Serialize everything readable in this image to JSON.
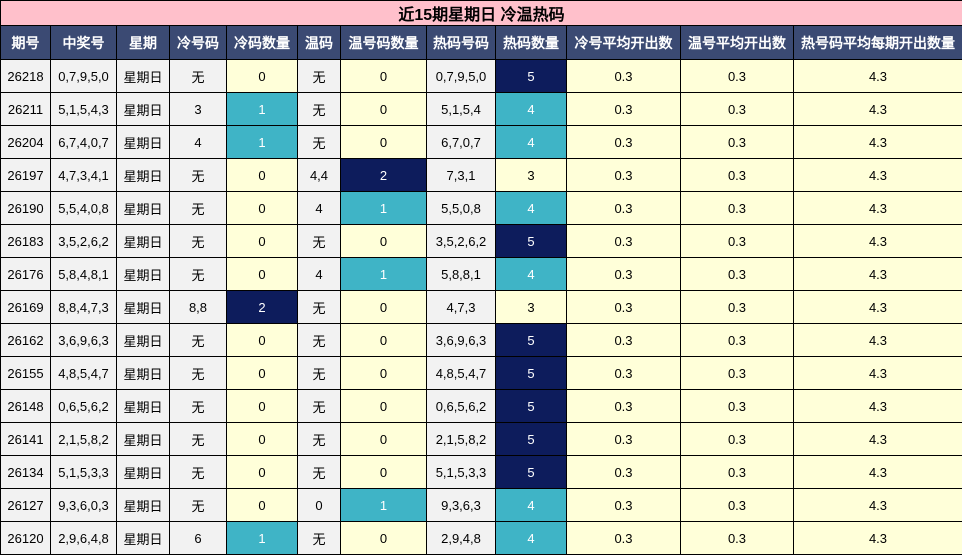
{
  "title": "近15期星期日 冷温热码",
  "headers": [
    "期号",
    "中奖号",
    "星期",
    "冷号码",
    "冷码数量",
    "温码",
    "温号码数量",
    "热码号码",
    "热码数量",
    "冷号平均开出数",
    "温号平均开出数",
    "热号码平均每期开出数量"
  ],
  "rows": [
    {
      "period": "26218",
      "numbers": "0,7,9,5,0",
      "weekday": "星期日",
      "cold": "无",
      "cold_count": "0",
      "warm": "无",
      "warm_count": "0",
      "hot": "0,7,9,5,0",
      "hot_count": "5",
      "cold_avg": "0.3",
      "warm_avg": "0.3",
      "hot_avg": "4.3"
    },
    {
      "period": "26211",
      "numbers": "5,1,5,4,3",
      "weekday": "星期日",
      "cold": "3",
      "cold_count": "1",
      "warm": "无",
      "warm_count": "0",
      "hot": "5,1,5,4",
      "hot_count": "4",
      "cold_avg": "0.3",
      "warm_avg": "0.3",
      "hot_avg": "4.3"
    },
    {
      "period": "26204",
      "numbers": "6,7,4,0,7",
      "weekday": "星期日",
      "cold": "4",
      "cold_count": "1",
      "warm": "无",
      "warm_count": "0",
      "hot": "6,7,0,7",
      "hot_count": "4",
      "cold_avg": "0.3",
      "warm_avg": "0.3",
      "hot_avg": "4.3"
    },
    {
      "period": "26197",
      "numbers": "4,7,3,4,1",
      "weekday": "星期日",
      "cold": "无",
      "cold_count": "0",
      "warm": "4,4",
      "warm_count": "2",
      "hot": "7,3,1",
      "hot_count": "3",
      "cold_avg": "0.3",
      "warm_avg": "0.3",
      "hot_avg": "4.3"
    },
    {
      "period": "26190",
      "numbers": "5,5,4,0,8",
      "weekday": "星期日",
      "cold": "无",
      "cold_count": "0",
      "warm": "4",
      "warm_count": "1",
      "hot": "5,5,0,8",
      "hot_count": "4",
      "cold_avg": "0.3",
      "warm_avg": "0.3",
      "hot_avg": "4.3"
    },
    {
      "period": "26183",
      "numbers": "3,5,2,6,2",
      "weekday": "星期日",
      "cold": "无",
      "cold_count": "0",
      "warm": "无",
      "warm_count": "0",
      "hot": "3,5,2,6,2",
      "hot_count": "5",
      "cold_avg": "0.3",
      "warm_avg": "0.3",
      "hot_avg": "4.3"
    },
    {
      "period": "26176",
      "numbers": "5,8,4,8,1",
      "weekday": "星期日",
      "cold": "无",
      "cold_count": "0",
      "warm": "4",
      "warm_count": "1",
      "hot": "5,8,8,1",
      "hot_count": "4",
      "cold_avg": "0.3",
      "warm_avg": "0.3",
      "hot_avg": "4.3"
    },
    {
      "period": "26169",
      "numbers": "8,8,4,7,3",
      "weekday": "星期日",
      "cold": "8,8",
      "cold_count": "2",
      "warm": "无",
      "warm_count": "0",
      "hot": "4,7,3",
      "hot_count": "3",
      "cold_avg": "0.3",
      "warm_avg": "0.3",
      "hot_avg": "4.3"
    },
    {
      "period": "26162",
      "numbers": "3,6,9,6,3",
      "weekday": "星期日",
      "cold": "无",
      "cold_count": "0",
      "warm": "无",
      "warm_count": "0",
      "hot": "3,6,9,6,3",
      "hot_count": "5",
      "cold_avg": "0.3",
      "warm_avg": "0.3",
      "hot_avg": "4.3"
    },
    {
      "period": "26155",
      "numbers": "4,8,5,4,7",
      "weekday": "星期日",
      "cold": "无",
      "cold_count": "0",
      "warm": "无",
      "warm_count": "0",
      "hot": "4,8,5,4,7",
      "hot_count": "5",
      "cold_avg": "0.3",
      "warm_avg": "0.3",
      "hot_avg": "4.3"
    },
    {
      "period": "26148",
      "numbers": "0,6,5,6,2",
      "weekday": "星期日",
      "cold": "无",
      "cold_count": "0",
      "warm": "无",
      "warm_count": "0",
      "hot": "0,6,5,6,2",
      "hot_count": "5",
      "cold_avg": "0.3",
      "warm_avg": "0.3",
      "hot_avg": "4.3"
    },
    {
      "period": "26141",
      "numbers": "2,1,5,8,2",
      "weekday": "星期日",
      "cold": "无",
      "cold_count": "0",
      "warm": "无",
      "warm_count": "0",
      "hot": "2,1,5,8,2",
      "hot_count": "5",
      "cold_avg": "0.3",
      "warm_avg": "0.3",
      "hot_avg": "4.3"
    },
    {
      "period": "26134",
      "numbers": "5,1,5,3,3",
      "weekday": "星期日",
      "cold": "无",
      "cold_count": "0",
      "warm": "无",
      "warm_count": "0",
      "hot": "5,1,5,3,3",
      "hot_count": "5",
      "cold_avg": "0.3",
      "warm_avg": "0.3",
      "hot_avg": "4.3"
    },
    {
      "period": "26127",
      "numbers": "9,3,6,0,3",
      "weekday": "星期日",
      "cold": "无",
      "cold_count": "0",
      "warm": "0",
      "warm_count": "1",
      "hot": "9,3,6,3",
      "hot_count": "4",
      "cold_avg": "0.3",
      "warm_avg": "0.3",
      "hot_avg": "4.3"
    },
    {
      "period": "26120",
      "numbers": "2,9,6,4,8",
      "weekday": "星期日",
      "cold": "6",
      "cold_count": "1",
      "warm": "无",
      "warm_count": "0",
      "hot": "2,9,4,8",
      "hot_count": "4",
      "cold_avg": "0.3",
      "warm_avg": "0.3",
      "hot_avg": "4.3"
    }
  ]
}
